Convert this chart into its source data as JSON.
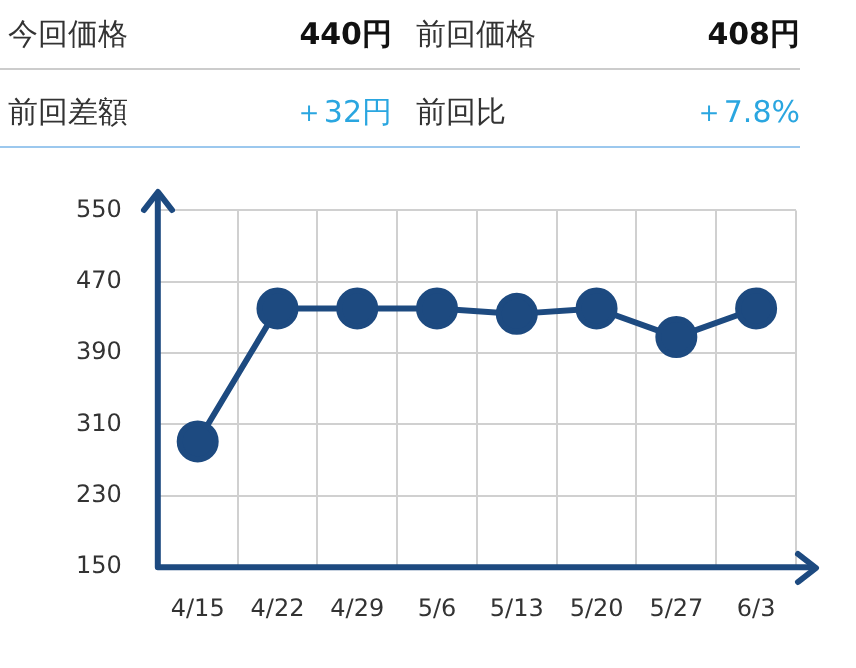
{
  "chart_data": {
    "type": "line",
    "annotations": [
      "今回価格",
      "440円",
      "前回価格",
      "408円",
      "前回差額",
      "＋32円",
      "前回比",
      "＋7.8%"
    ],
    "categories": [
      "4/15",
      "4/22",
      "4/29",
      "5/6",
      "5/13",
      "5/20",
      "5/27",
      "6/3"
    ],
    "series": [
      {
        "color": "#1d4a80",
        "values": [
          291,
          440,
          440,
          440,
          434,
          440,
          408,
          440
        ]
      }
    ],
    "ylim": [
      150,
      550
    ],
    "yticks": [
      150,
      230,
      310,
      390,
      470,
      550
    ],
    "grid": true,
    "marker": "circle",
    "line_style": "solid",
    "legend": false
  }
}
